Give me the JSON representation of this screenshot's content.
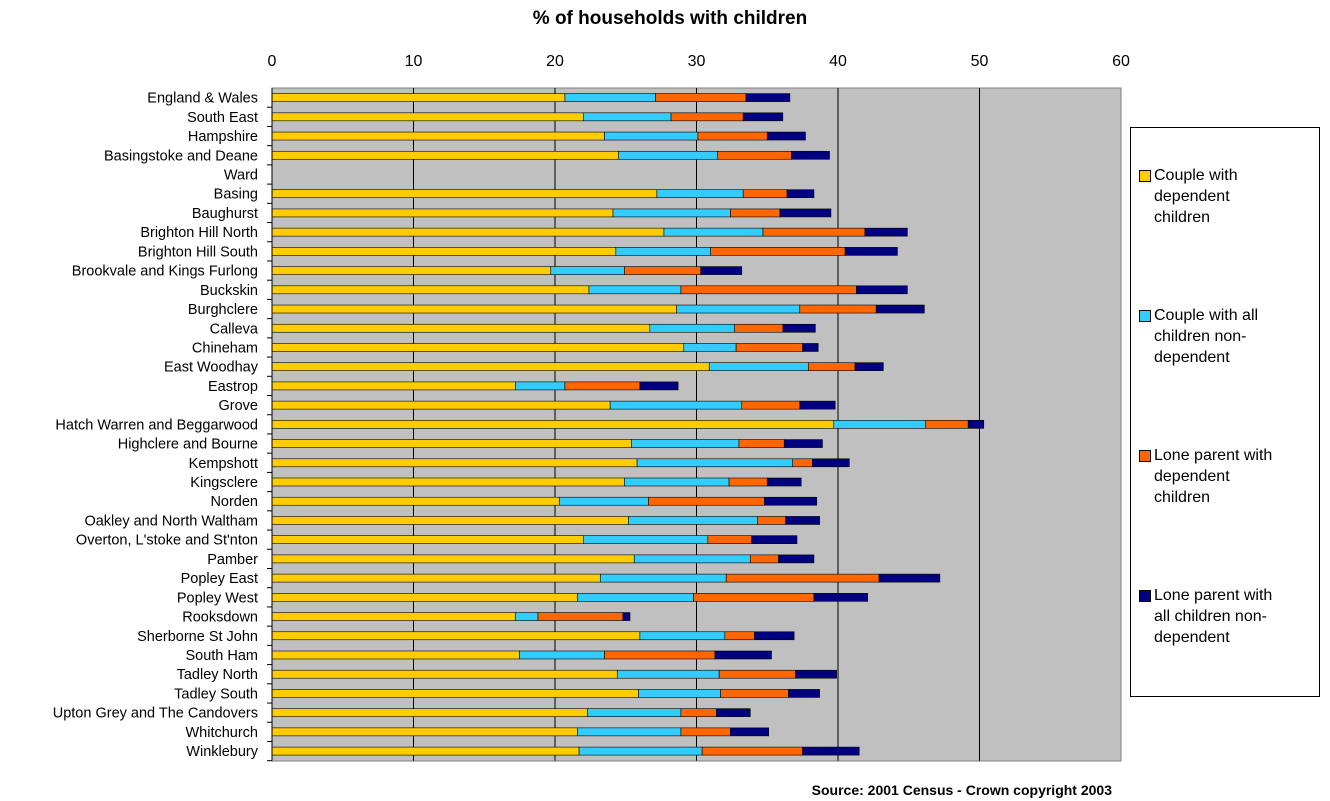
{
  "chart_data": {
    "type": "bar",
    "orientation": "horizontal",
    "stacked": true,
    "title": "% of households with children",
    "xlabel": "",
    "ylabel": "",
    "xlim": [
      0,
      60
    ],
    "x_ticks": [
      0,
      10,
      20,
      30,
      40,
      50,
      60
    ],
    "x_axis_position": "top",
    "grid": true,
    "legend_position": "right",
    "categories": [
      "England & Wales",
      "South East",
      "Hampshire",
      "Basingstoke and Deane",
      "Ward",
      "Basing",
      "Baughurst",
      "Brighton Hill North",
      "Brighton Hill South",
      "Brookvale and Kings Furlong",
      "Buckskin",
      "Burghclere",
      "Calleva",
      "Chineham",
      "East Woodhay",
      "Eastrop",
      "Grove",
      "Hatch Warren and Beggarwood",
      "Highclere and Bourne",
      "Kempshott",
      "Kingsclere",
      "Norden",
      "Oakley and North Waltham",
      "Overton, L'stoke and St'nton",
      "Pamber",
      "Popley East",
      "Popley West",
      "Rooksdown",
      "Sherborne St John",
      "South Ham",
      "Tadley North",
      "Tadley South",
      "Upton Grey and The Candovers",
      "Whitchurch",
      "Winklebury"
    ],
    "series": [
      {
        "name": "Couple with dependent children",
        "color": "#FFCC00",
        "values": [
          20.7,
          22.0,
          23.5,
          24.5,
          null,
          27.2,
          24.1,
          27.7,
          24.3,
          19.7,
          22.4,
          28.6,
          26.7,
          29.1,
          30.9,
          17.2,
          23.9,
          39.7,
          25.4,
          25.8,
          24.9,
          20.3,
          25.2,
          22.0,
          25.6,
          23.2,
          21.6,
          17.2,
          26.0,
          17.5,
          24.4,
          25.9,
          22.3,
          21.6,
          21.7
        ]
      },
      {
        "name": "Couple with all children non-dependent",
        "color": "#33CCFF",
        "values": [
          6.4,
          6.2,
          6.6,
          7.0,
          null,
          6.1,
          8.3,
          7.0,
          6.7,
          5.2,
          6.5,
          8.7,
          6.0,
          3.7,
          7.0,
          3.5,
          9.3,
          6.5,
          7.6,
          11.0,
          7.4,
          6.3,
          9.1,
          8.8,
          8.2,
          8.9,
          8.2,
          1.6,
          6.0,
          6.0,
          7.2,
          5.8,
          6.6,
          7.3,
          8.7
        ]
      },
      {
        "name": "Lone parent with dependent children",
        "color": "#FF6600",
        "values": [
          6.4,
          5.1,
          4.9,
          5.2,
          null,
          3.1,
          3.5,
          7.2,
          9.5,
          5.4,
          12.4,
          5.4,
          3.4,
          4.7,
          3.3,
          5.3,
          4.1,
          3.0,
          3.2,
          1.4,
          2.7,
          8.2,
          2.0,
          3.1,
          2.0,
          10.8,
          8.5,
          6.0,
          2.1,
          7.8,
          5.4,
          4.8,
          2.5,
          3.5,
          7.1
        ]
      },
      {
        "name": "Lone parent with all children non-dependent",
        "color": "#000080",
        "values": [
          3.1,
          2.8,
          2.7,
          2.7,
          null,
          1.9,
          3.6,
          3.0,
          3.7,
          2.9,
          3.6,
          3.4,
          2.3,
          1.1,
          2.0,
          2.7,
          2.5,
          1.1,
          2.7,
          2.6,
          2.4,
          3.7,
          2.4,
          3.2,
          2.5,
          4.3,
          3.8,
          0.5,
          2.8,
          4.0,
          2.9,
          2.2,
          2.4,
          2.7,
          4.0
        ]
      }
    ]
  },
  "legend": {
    "items": [
      {
        "lines": [
          "Couple with",
          "dependent",
          "children"
        ],
        "color": "#FFCC00"
      },
      {
        "lines": [
          "Couple with all",
          "children non-",
          "dependent"
        ],
        "color": "#33CCFF"
      },
      {
        "lines": [
          "Lone parent with",
          "dependent",
          "children"
        ],
        "color": "#FF6600"
      },
      {
        "lines": [
          "Lone parent with",
          "all children non-",
          "dependent"
        ],
        "color": "#000080"
      }
    ]
  },
  "source": "Source: 2001 Census - Crown copyright 2003",
  "colors": {
    "plot_background": "#C0C0C0",
    "gridline": "#000000"
  }
}
